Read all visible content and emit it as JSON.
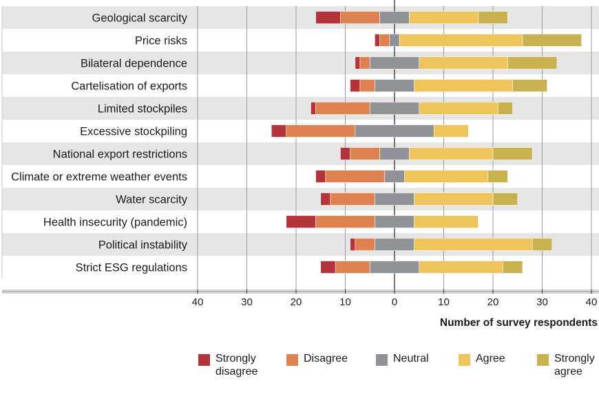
{
  "chart_data": {
    "type": "bar",
    "subtype": "diverging-stacked-horizontal",
    "title": "",
    "xlabel": "Number of survey respondents",
    "ylabel": "",
    "xlim": [
      -40,
      40
    ],
    "xticks": [
      -40,
      -30,
      -20,
      -10,
      0,
      10,
      20,
      30,
      40
    ],
    "xtick_labels": [
      "40",
      "30",
      "20",
      "10",
      "0",
      "10",
      "20",
      "30",
      "40"
    ],
    "neutral_centered": true,
    "categories": [
      "Geological scarcity",
      "Price risks",
      "Bilateral dependence",
      "Cartelisation of exports",
      "Limited stockpiles",
      "Excessive stockpiling",
      "National export restrictions",
      "Climate or extreme weather events",
      "Water scarcity",
      "Health insecurity (pandemic)",
      "Political instability",
      "Strict ESG regulations"
    ],
    "series": [
      {
        "name": "Strongly disagree",
        "color": "#b5343a",
        "values": [
          5,
          1,
          1,
          2,
          1,
          3,
          2,
          2,
          2,
          6,
          1,
          3
        ]
      },
      {
        "name": "Disagree",
        "color": "#e0824f",
        "values": [
          8,
          2,
          2,
          3,
          11,
          14,
          6,
          12,
          9,
          12,
          4,
          7
        ]
      },
      {
        "name": "Neutral",
        "color": "#8f9296",
        "values": [
          6,
          2,
          10,
          8,
          10,
          16,
          6,
          4,
          8,
          8,
          8,
          10
        ]
      },
      {
        "name": "Agree",
        "color": "#efc45a",
        "values": [
          14,
          25,
          18,
          20,
          16,
          7,
          17,
          17,
          16,
          13,
          24,
          17
        ]
      },
      {
        "name": "Strongly agree",
        "color": "#c8b24f",
        "values": [
          6,
          12,
          10,
          7,
          3,
          0,
          8,
          4,
          5,
          0,
          4,
          4
        ]
      }
    ],
    "grid": true,
    "legend_position": "bottom"
  },
  "legend": {
    "items": [
      {
        "label_line1": "Strongly",
        "label_line2": "disagree",
        "color": "#b5343a"
      },
      {
        "label_line1": "Disagree",
        "label_line2": "",
        "color": "#e0824f"
      },
      {
        "label_line1": "Neutral",
        "label_line2": "",
        "color": "#8f9296"
      },
      {
        "label_line1": "Agree",
        "label_line2": "",
        "color": "#efc45a"
      },
      {
        "label_line1": "Strongly",
        "label_line2": "agree",
        "color": "#c8b24f"
      }
    ]
  }
}
